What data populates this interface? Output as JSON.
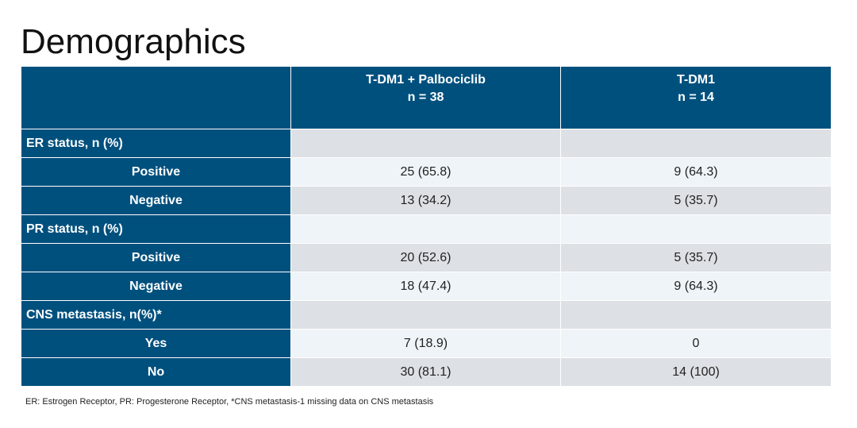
{
  "title": "Demographics",
  "table": {
    "header": [
      "T-DM1 + Palbociclib",
      "n = 38",
      "T-DM1",
      "n = 14"
    ],
    "rows": [
      [
        "ER status, n (%)",
        "",
        ""
      ],
      [
        "Positive",
        "25 (65.8)",
        "9 (64.3)"
      ],
      [
        "Negative",
        "13 (34.2)",
        "5 (35.7)"
      ],
      [
        "PR status, n (%)",
        "",
        ""
      ],
      [
        "Positive",
        "20 (52.6)",
        "5 (35.7)"
      ],
      [
        "Negative",
        "18 (47.4)",
        "9 (64.3)"
      ],
      [
        "CNS metastasis, n(%)*",
        "",
        ""
      ],
      [
        "Yes",
        "7 (18.9)",
        "0"
      ],
      [
        "No",
        "30 (81.1)",
        "14 (100)"
      ]
    ]
  },
  "footnote": "ER: Estrogen Receptor, PR: Progesterone Receptor, *CNS metastasis-1 missing data on CNS metastasis"
}
